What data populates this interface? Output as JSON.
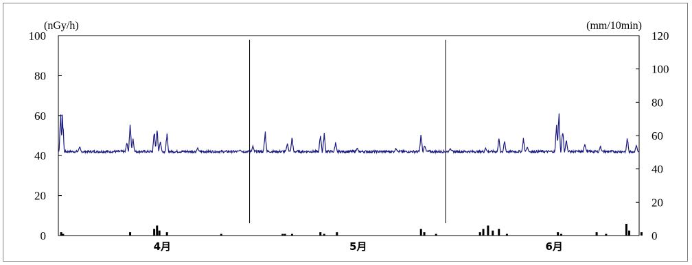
{
  "chart_data": {
    "type": "line",
    "title": "",
    "left_axis": {
      "unit": "(nGy/h)",
      "ylim": [
        0,
        100
      ],
      "ticks": [
        0,
        20,
        40,
        60,
        80,
        100
      ]
    },
    "right_axis": {
      "unit": "(mm/10min)",
      "ylim": [
        0,
        120
      ],
      "ticks": [
        0,
        20,
        40,
        60,
        80,
        100,
        120
      ]
    },
    "x_categories": [
      "4月",
      "5月",
      "6月"
    ],
    "month_separators": [
      "4月|5月",
      "5月|6月"
    ],
    "colors": {
      "dose_rate": "#1a1a80",
      "precipitation": "#000000",
      "axis": "#000000",
      "frame": "#7f7f7f"
    },
    "series": [
      {
        "axis": "left",
        "kind": "line",
        "baseline": 42,
        "spikes": [
          {
            "day": 0.5,
            "value": 63.5
          },
          {
            "day": 0.9,
            "value": 62
          },
          {
            "day": 4.5,
            "value": 45
          },
          {
            "day": 14.5,
            "value": 47
          },
          {
            "day": 15.2,
            "value": 57
          },
          {
            "day": 15.8,
            "value": 50
          },
          {
            "day": 20.3,
            "value": 54
          },
          {
            "day": 20.9,
            "value": 55
          },
          {
            "day": 21.6,
            "value": 48
          },
          {
            "day": 23.0,
            "value": 52
          },
          {
            "day": 29.5,
            "value": 44
          },
          {
            "day": 38.5,
            "value": 43
          },
          {
            "day": 41.2,
            "value": 45
          },
          {
            "day": 43.8,
            "value": 54
          },
          {
            "day": 48.5,
            "value": 47
          },
          {
            "day": 49.5,
            "value": 50
          },
          {
            "day": 55.5,
            "value": 53
          },
          {
            "day": 56.3,
            "value": 52
          },
          {
            "day": 58.7,
            "value": 47
          },
          {
            "day": 63.3,
            "value": 44
          },
          {
            "day": 71.5,
            "value": 44
          },
          {
            "day": 76.8,
            "value": 52
          },
          {
            "day": 77.6,
            "value": 46
          },
          {
            "day": 83.0,
            "value": 44
          },
          {
            "day": 90.5,
            "value": 44
          },
          {
            "day": 93.3,
            "value": 49
          },
          {
            "day": 94.5,
            "value": 48
          },
          {
            "day": 98.5,
            "value": 50
          },
          {
            "day": 99.3,
            "value": 45
          },
          {
            "day": 105.5,
            "value": 57
          },
          {
            "day": 106.0,
            "value": 64
          },
          {
            "day": 106.8,
            "value": 55
          },
          {
            "day": 107.6,
            "value": 49
          },
          {
            "day": 111.5,
            "value": 47
          },
          {
            "day": 114.8,
            "value": 45
          },
          {
            "day": 120.5,
            "value": 50
          },
          {
            "day": 122.4,
            "value": 46
          }
        ]
      },
      {
        "axis": "right",
        "kind": "bars",
        "events": [
          {
            "day": 0.6,
            "value": 2
          },
          {
            "day": 1.0,
            "value": 1
          },
          {
            "day": 15.2,
            "value": 2
          },
          {
            "day": 20.3,
            "value": 4
          },
          {
            "day": 20.9,
            "value": 6
          },
          {
            "day": 21.4,
            "value": 3
          },
          {
            "day": 23.0,
            "value": 2
          },
          {
            "day": 34.5,
            "value": 1
          },
          {
            "day": 47.5,
            "value": 1
          },
          {
            "day": 48.0,
            "value": 1
          },
          {
            "day": 49.5,
            "value": 1
          },
          {
            "day": 55.5,
            "value": 2
          },
          {
            "day": 56.3,
            "value": 1
          },
          {
            "day": 59.0,
            "value": 2
          },
          {
            "day": 76.8,
            "value": 4
          },
          {
            "day": 77.5,
            "value": 2
          },
          {
            "day": 80.0,
            "value": 1
          },
          {
            "day": 89.3,
            "value": 2
          },
          {
            "day": 90.0,
            "value": 4
          },
          {
            "day": 91.0,
            "value": 6
          },
          {
            "day": 92.0,
            "value": 3
          },
          {
            "day": 93.3,
            "value": 4
          },
          {
            "day": 95.0,
            "value": 1
          },
          {
            "day": 105.8,
            "value": 2
          },
          {
            "day": 106.5,
            "value": 1
          },
          {
            "day": 114.0,
            "value": 2
          },
          {
            "day": 116.0,
            "value": 1
          },
          {
            "day": 120.3,
            "value": 7
          },
          {
            "day": 120.9,
            "value": 3
          },
          {
            "day": 123.5,
            "value": 2
          }
        ]
      }
    ],
    "x_range_days": [
      0,
      123
    ]
  }
}
